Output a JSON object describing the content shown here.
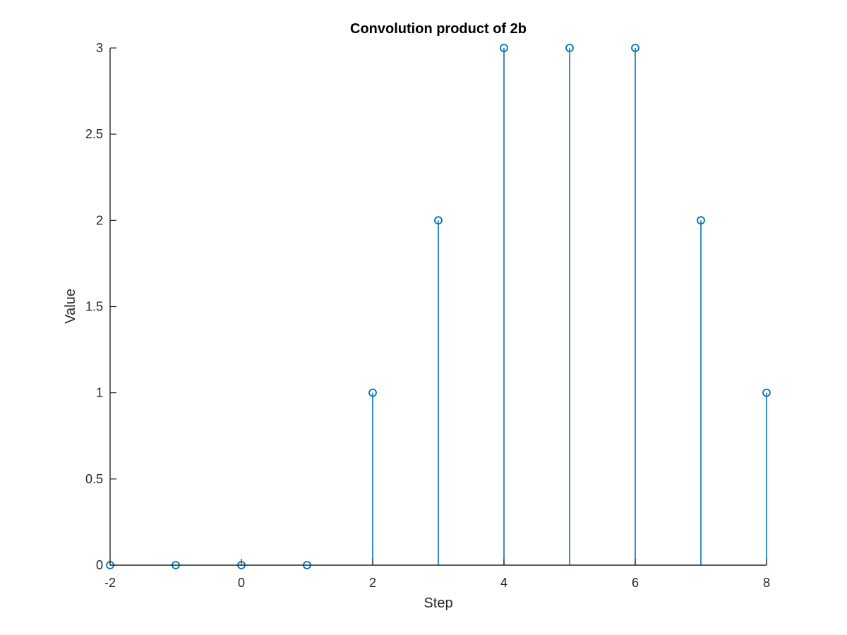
{
  "chart_data": {
    "type": "stem",
    "title": "Convolution product of 2b",
    "xlabel": "Step",
    "ylabel": "Value",
    "xlim": [
      -2,
      8
    ],
    "ylim": [
      0,
      3
    ],
    "x_ticks": [
      -2,
      0,
      2,
      4,
      6,
      8
    ],
    "x_tick_labels": [
      "-2",
      "0",
      "2",
      "4",
      "6",
      "8"
    ],
    "y_ticks": [
      0,
      0.5,
      1,
      1.5,
      2,
      2.5,
      3
    ],
    "y_tick_labels": [
      "0",
      "0.5",
      "1",
      "1.5",
      "2",
      "2.5",
      "3"
    ],
    "grid": false,
    "series": [
      {
        "x": [
          -2,
          -1,
          0,
          1,
          2,
          3,
          4,
          5,
          6,
          7,
          8
        ],
        "values": [
          0,
          0,
          0,
          0,
          1,
          2,
          3,
          3,
          3,
          2,
          1
        ],
        "color": "#0072BD",
        "marker": "circle"
      }
    ],
    "axis_color": "#262626"
  }
}
